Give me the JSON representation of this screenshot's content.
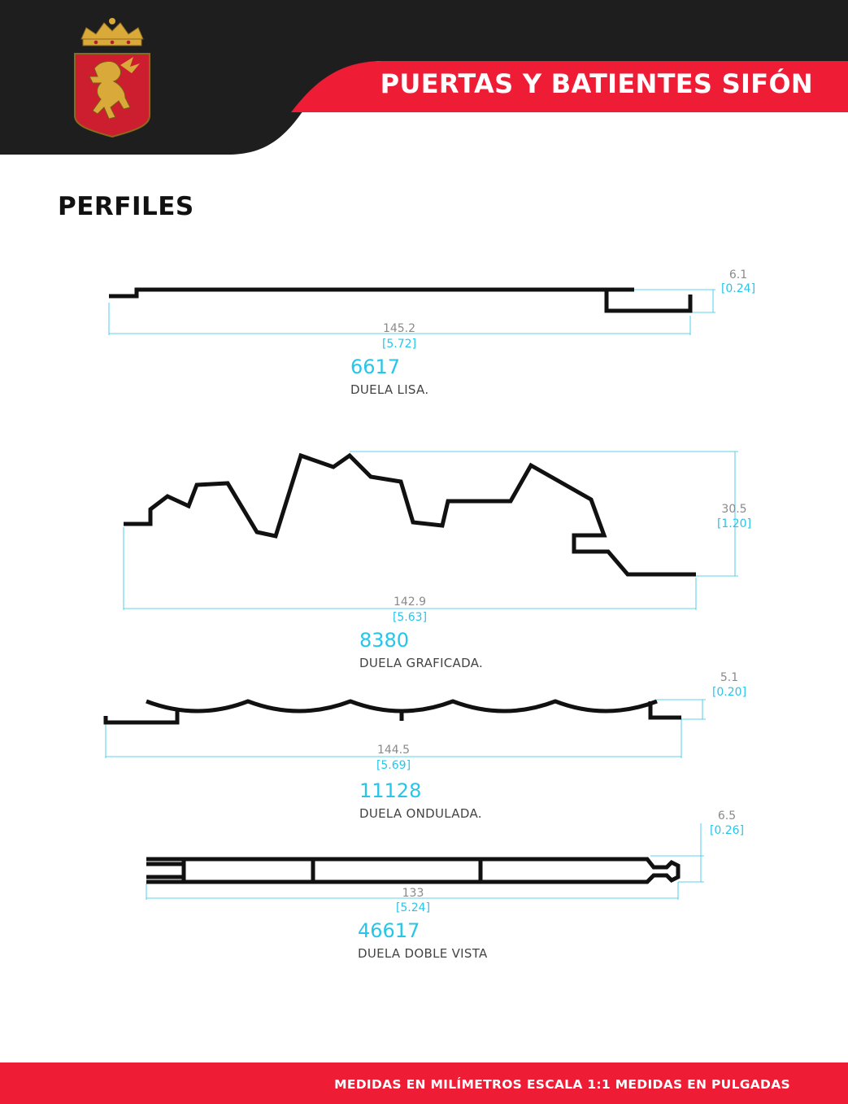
{
  "header": {
    "brand_title": "PUERTAS Y BATIENTES SIFÓN",
    "logo_icon": "lion-crest-icon",
    "colors": {
      "dark": "#1e1e1f",
      "red": "#ee1c35",
      "gold": "#d9a93a"
    }
  },
  "section_title": "PERFILES",
  "profiles": [
    {
      "code": "6617",
      "name": "DUELA LISA.",
      "width_mm": "145.2",
      "width_in": "[5.72]",
      "height_mm": "6.1",
      "height_in": "[0.24]"
    },
    {
      "code": "8380",
      "name": "DUELA GRAFICADA.",
      "width_mm": "142.9",
      "width_in": "[5.63]",
      "height_mm": "30.5",
      "height_in": "[1.20]"
    },
    {
      "code": "11128",
      "name": "DUELA ONDULADA.",
      "width_mm": "144.5",
      "width_in": "[5.69]",
      "height_mm": "5.1",
      "height_in": "[0.20]"
    },
    {
      "code": "46617",
      "name": "DUELA DOBLE VISTA",
      "width_mm": "133",
      "width_in": "[5.24]",
      "height_mm": "6.5",
      "height_in": "[0.26]"
    }
  ],
  "footer": {
    "note": "MEDIDAS EN MILÍMETROS ESCALA 1:1 MEDIDAS EN PULGADAS"
  },
  "dimension_color": "#26c6e8"
}
